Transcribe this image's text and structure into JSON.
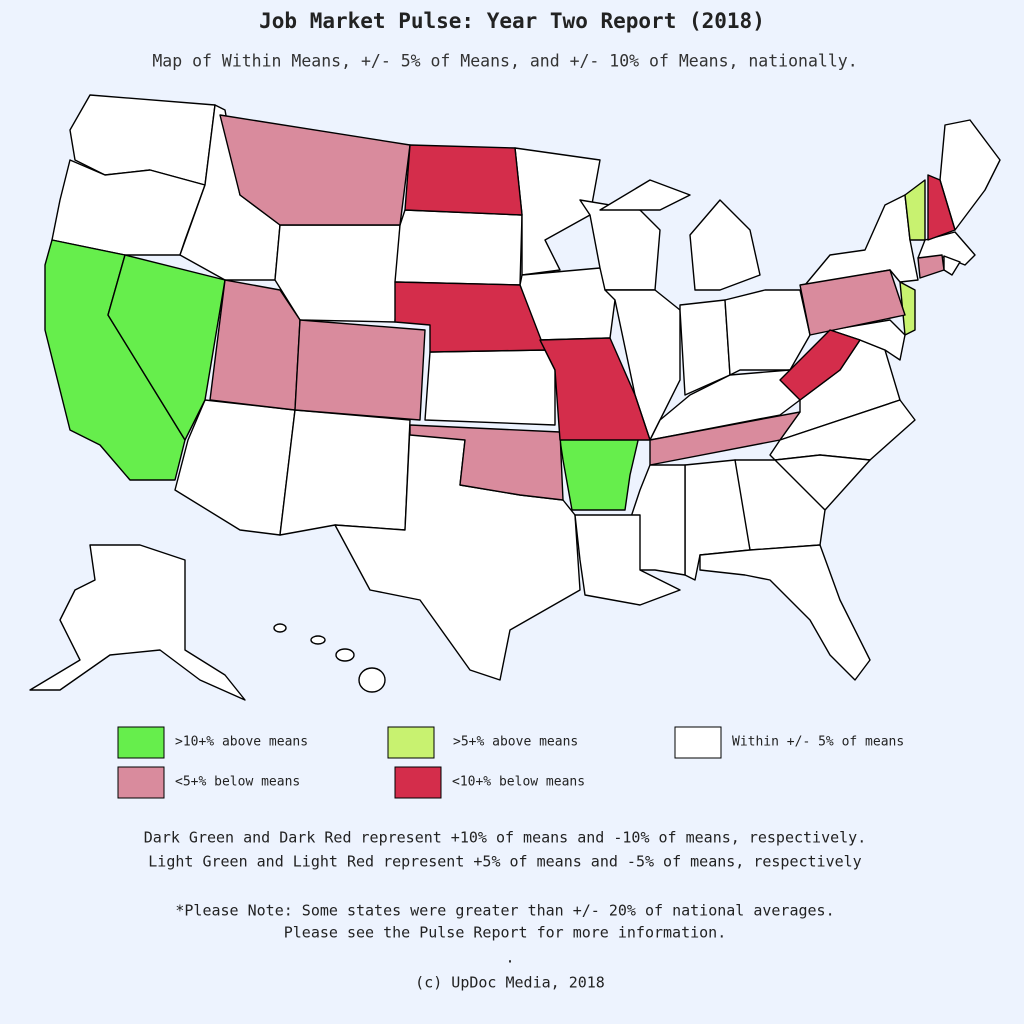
{
  "header": {
    "title": "Job Market Pulse: Year Two Report (2018)",
    "subtitle": "Map of Within Means, +/- 5% of Means, and +/- 10% of Means, nationally."
  },
  "legend": [
    {
      "label": ">10+% above means",
      "color": "#66ee4c"
    },
    {
      "label": ">5+% above means",
      "color": "#c8f270"
    },
    {
      "label": "Within +/- 5% of means",
      "color": "#ffffff"
    },
    {
      "label": "<5+% below means",
      "color": "#d98b9d"
    },
    {
      "label": "<10+% below means",
      "color": "#d42d4b"
    }
  ],
  "notes": [
    "Dark Green and Dark Red represent +10% of means and -10% of means, respectively.",
    "Light Green and Light Red represent +5% of means and -5% of means, respectively",
    "*Please Note: Some states were greater than +/- 20% of national averages.",
    "Please see the Pulse Report for more information."
  ],
  "dot": ".",
  "credit": "(c) UpDoc Media, 2018"
}
